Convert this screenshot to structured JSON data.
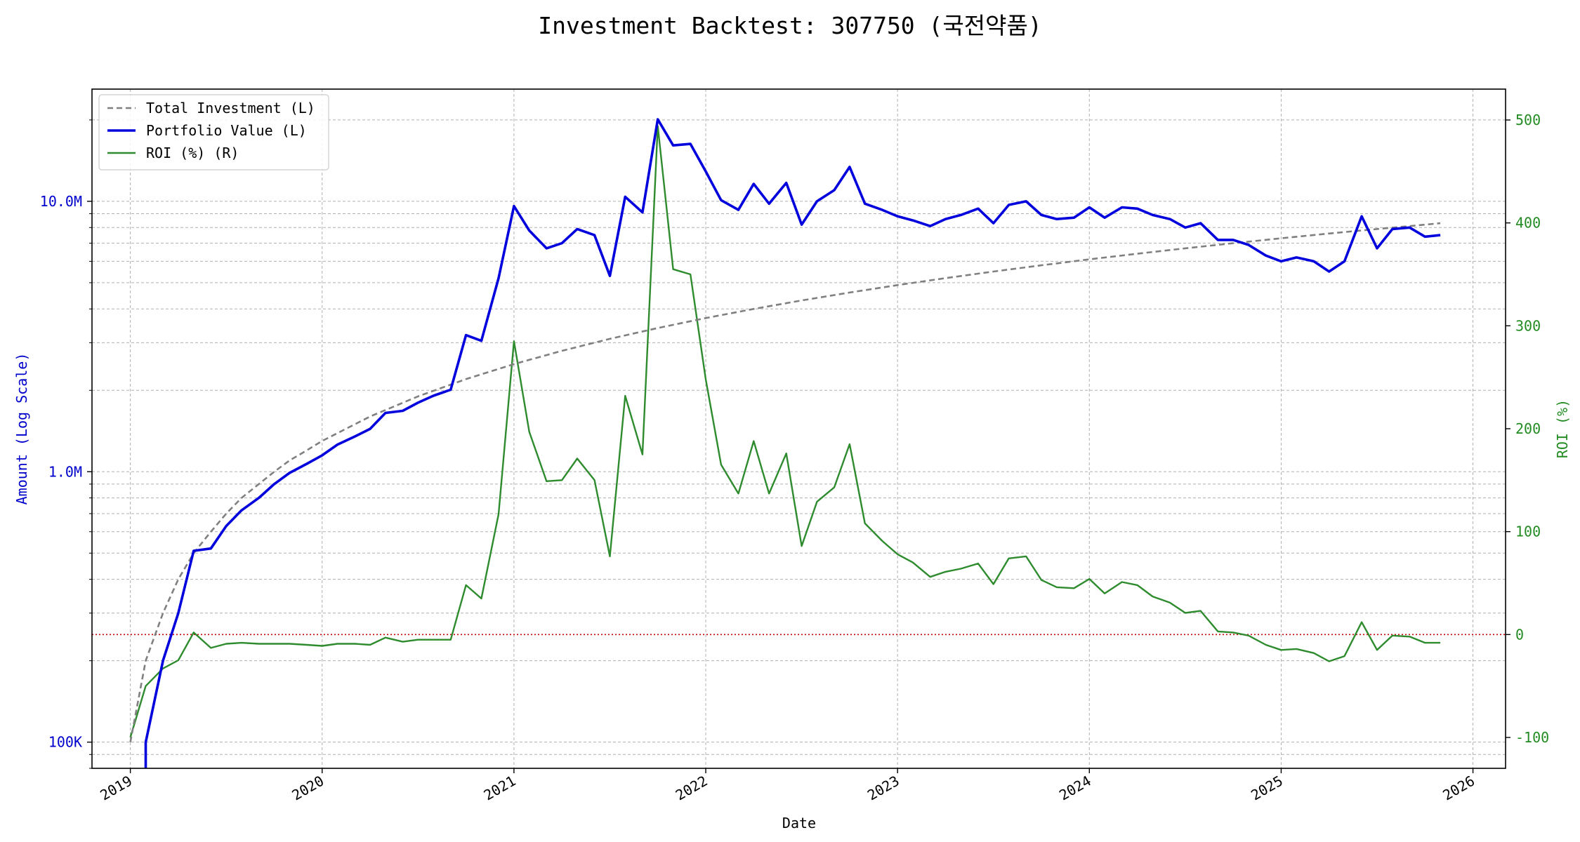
{
  "chart_data": {
    "type": "line",
    "title": "Investment Backtest: 307750 (국전약품)",
    "xlabel": "Date",
    "ylabel_left": "Amount (Log Scale)",
    "ylabel_right": "ROI (%)",
    "left_axis": {
      "scale": "log",
      "range": [
        80000,
        26000000
      ],
      "tick_labels": [
        "100K",
        "1.0M",
        "10.0M"
      ],
      "tick_values": [
        100000,
        1000000,
        10000000
      ]
    },
    "right_axis": {
      "scale": "linear",
      "range": [
        -130,
        530
      ],
      "tick_values": [
        -100,
        0,
        100,
        200,
        300,
        400,
        500
      ]
    },
    "x_range": [
      2018.8,
      2026.17
    ],
    "x_ticks": [
      "2019",
      "2020",
      "2021",
      "2022",
      "2023",
      "2024",
      "2025",
      "2026"
    ],
    "grid": true,
    "legend_position": "top-left",
    "colors": {
      "total_investment": "#808080",
      "portfolio_value": "#0000dd",
      "roi": "#2e8b2e",
      "zero_line": "#cc0000",
      "left_axis": "#0000cc",
      "right_axis": "#228b22"
    },
    "series": [
      {
        "name": "Total Investment (L)",
        "axis": "left",
        "style": "dashed",
        "x": [
          2019.0,
          2019.08,
          2019.17,
          2019.25,
          2019.33,
          2019.42,
          2019.5,
          2019.58,
          2019.67,
          2019.75,
          2019.83,
          2019.92,
          2020.0,
          2020.25,
          2020.5,
          2020.75,
          2021.0,
          2021.25,
          2021.5,
          2021.75,
          2022.0,
          2022.25,
          2022.5,
          2022.75,
          2023.0,
          2023.25,
          2023.5,
          2023.75,
          2024.0,
          2024.25,
          2024.5,
          2024.75,
          2025.0,
          2025.25,
          2025.5,
          2025.67,
          2025.83
        ],
        "values": [
          100000,
          200000,
          300000,
          400000,
          500000,
          600000,
          700000,
          800000,
          900000,
          1000000,
          1100000,
          1200000,
          1300000,
          1600000,
          1900000,
          2200000,
          2500000,
          2800000,
          3100000,
          3400000,
          3700000,
          4000000,
          4300000,
          4600000,
          4900000,
          5200000,
          5500000,
          5800000,
          6100000,
          6400000,
          6700000,
          7000000,
          7300000,
          7600000,
          7900000,
          8100000,
          8300000
        ]
      },
      {
        "name": "Portfolio Value (L)",
        "axis": "left",
        "style": "solid",
        "x": [
          2019.08,
          2019.08,
          2019.17,
          2019.25,
          2019.33,
          2019.42,
          2019.5,
          2019.58,
          2019.67,
          2019.75,
          2019.83,
          2019.92,
          2020.0,
          2020.08,
          2020.17,
          2020.25,
          2020.33,
          2020.42,
          2020.5,
          2020.58,
          2020.67,
          2020.75,
          2020.83,
          2020.92,
          2021.0,
          2021.08,
          2021.17,
          2021.25,
          2021.33,
          2021.42,
          2021.5,
          2021.58,
          2021.67,
          2021.75,
          2021.83,
          2021.92,
          2022.0,
          2022.08,
          2022.17,
          2022.25,
          2022.33,
          2022.42,
          2022.5,
          2022.58,
          2022.67,
          2022.75,
          2022.83,
          2022.92,
          2023.0,
          2023.08,
          2023.17,
          2023.25,
          2023.33,
          2023.42,
          2023.5,
          2023.58,
          2023.67,
          2023.75,
          2023.83,
          2023.92,
          2024.0,
          2024.08,
          2024.17,
          2024.25,
          2024.33,
          2024.42,
          2024.5,
          2024.58,
          2024.67,
          2024.75,
          2024.83,
          2024.92,
          2025.0,
          2025.08,
          2025.17,
          2025.25,
          2025.33,
          2025.42,
          2025.5,
          2025.58,
          2025.67,
          2025.75,
          2025.83
        ],
        "values": [
          75000,
          100000,
          200000,
          300000,
          510000,
          520000,
          630000,
          720000,
          800000,
          900000,
          990000,
          1070000,
          1150000,
          1260000,
          1350000,
          1440000,
          1650000,
          1680000,
          1800000,
          1910000,
          2010000,
          3200000,
          3050000,
          5200000,
          9600000,
          7800000,
          6700000,
          7000000,
          7900000,
          7500000,
          5300000,
          10400000,
          9100000,
          20100000,
          16100000,
          16300000,
          12900000,
          10100000,
          9300000,
          11600000,
          9800000,
          11700000,
          8200000,
          10000000,
          11000000,
          13400000,
          9800000,
          9300000,
          8800000,
          8500000,
          8100000,
          8600000,
          8900000,
          9400000,
          8300000,
          9700000,
          10000000,
          8900000,
          8600000,
          8700000,
          9500000,
          8700000,
          9500000,
          9400000,
          8900000,
          8600000,
          8000000,
          8300000,
          7200000,
          7200000,
          6900000,
          6300000,
          6000000,
          6200000,
          6000000,
          5500000,
          6000000,
          8800000,
          6700000,
          7900000,
          8000000,
          7400000,
          7500000
        ]
      },
      {
        "name": "ROI (%) (R)",
        "axis": "right",
        "style": "solid",
        "x": [
          2019.0,
          2019.08,
          2019.17,
          2019.25,
          2019.33,
          2019.42,
          2019.5,
          2019.58,
          2019.67,
          2019.75,
          2019.83,
          2019.92,
          2020.0,
          2020.08,
          2020.17,
          2020.25,
          2020.33,
          2020.42,
          2020.5,
          2020.58,
          2020.67,
          2020.75,
          2020.83,
          2020.92,
          2021.0,
          2021.08,
          2021.17,
          2021.25,
          2021.33,
          2021.42,
          2021.5,
          2021.58,
          2021.67,
          2021.75,
          2021.83,
          2021.92,
          2022.0,
          2022.08,
          2022.17,
          2022.25,
          2022.33,
          2022.42,
          2022.5,
          2022.58,
          2022.67,
          2022.75,
          2022.83,
          2022.92,
          2023.0,
          2023.08,
          2023.17,
          2023.25,
          2023.33,
          2023.42,
          2023.5,
          2023.58,
          2023.67,
          2023.75,
          2023.83,
          2023.92,
          2024.0,
          2024.08,
          2024.17,
          2024.25,
          2024.33,
          2024.42,
          2024.5,
          2024.58,
          2024.67,
          2024.75,
          2024.83,
          2024.92,
          2025.0,
          2025.08,
          2025.17,
          2025.25,
          2025.33,
          2025.42,
          2025.5,
          2025.58,
          2025.67,
          2025.75,
          2025.83
        ],
        "values": [
          -100,
          -50,
          -33,
          -25,
          2,
          -13,
          -9,
          -8,
          -9,
          -9,
          -9,
          -10,
          -11,
          -9,
          -9,
          -10,
          -3,
          -7,
          -5,
          -5,
          -5,
          48,
          35,
          117,
          285,
          197,
          149,
          150,
          171,
          150,
          76,
          232,
          175,
          494,
          355,
          350,
          248,
          165,
          137,
          188,
          137,
          176,
          86,
          129,
          143,
          185,
          108,
          91,
          78,
          70,
          56,
          61,
          64,
          69,
          49,
          74,
          76,
          53,
          46,
          45,
          54,
          40,
          51,
          48,
          37,
          31,
          21,
          23,
          3,
          2,
          -1,
          -10,
          -15,
          -14,
          -18,
          -26,
          -21,
          12,
          -15,
          -1,
          -2,
          -8,
          -8
        ]
      }
    ]
  }
}
